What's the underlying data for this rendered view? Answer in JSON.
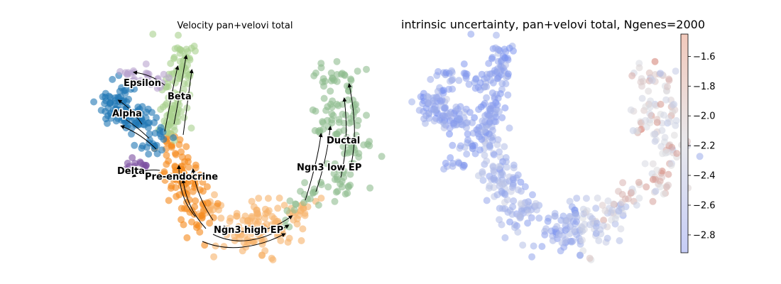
{
  "figure": {
    "left_panel": {
      "title": "Velocity pan+velovi total",
      "clusters": [
        {
          "name": "Epsilon",
          "color": "#b9a3cf"
        },
        {
          "name": "Beta",
          "color": "#a8d08d"
        },
        {
          "name": "Alpha",
          "color": "#1f77b4"
        },
        {
          "name": "Ductal",
          "color": "#8fbc8f"
        },
        {
          "name": "Delta",
          "color": "#7b4fa0"
        },
        {
          "name": "Pre-endocrine",
          "color": "#f5891a"
        },
        {
          "name": "Ngn3 low EP",
          "color": "#8fbc8f"
        },
        {
          "name": "Ngn3 high EP",
          "color": "#f7b36b"
        }
      ]
    },
    "right_panel": {
      "title": "intrinsic uncertainty, pan+velovi total, Ngenes=2000",
      "colormap": "coolwarm",
      "colorbar": {
        "min": -2.92,
        "max": -1.45,
        "ticks": [
          "−1.6",
          "−1.8",
          "−2.0",
          "−2.2",
          "−2.4",
          "−2.6",
          "−2.8"
        ],
        "tick_values": [
          -1.6,
          -1.8,
          -2.0,
          -2.2,
          -2.4,
          -2.6,
          -2.8
        ]
      }
    }
  },
  "chart_data": [
    {
      "type": "scatter",
      "title": "Velocity pan+velovi total",
      "xlabel": "",
      "ylabel": "",
      "grid": false,
      "legend": "on data",
      "series": [
        {
          "name": "Epsilon",
          "color": "#b9a3cf"
        },
        {
          "name": "Beta",
          "color": "#a8d08d"
        },
        {
          "name": "Alpha",
          "color": "#1f77b4"
        },
        {
          "name": "Ductal",
          "color": "#8fbc8f"
        },
        {
          "name": "Delta",
          "color": "#7b4fa0"
        },
        {
          "name": "Pre-endocrine",
          "color": "#f5891a"
        },
        {
          "name": "Ngn3 low EP",
          "color": "#8fbc8f"
        },
        {
          "name": "Ngn3 high EP",
          "color": "#f7b36b"
        }
      ],
      "overlay": "velocity streamlines with arrowheads"
    },
    {
      "type": "scatter",
      "title": "intrinsic uncertainty, pan+velovi total, Ngenes=2000",
      "xlabel": "",
      "ylabel": "",
      "grid": false,
      "colormap": "coolwarm",
      "color_range": [
        -2.92,
        -1.45
      ],
      "colorbar_ticks": [
        -1.6,
        -1.8,
        -2.0,
        -2.2,
        -2.4,
        -2.6,
        -2.8
      ]
    }
  ]
}
